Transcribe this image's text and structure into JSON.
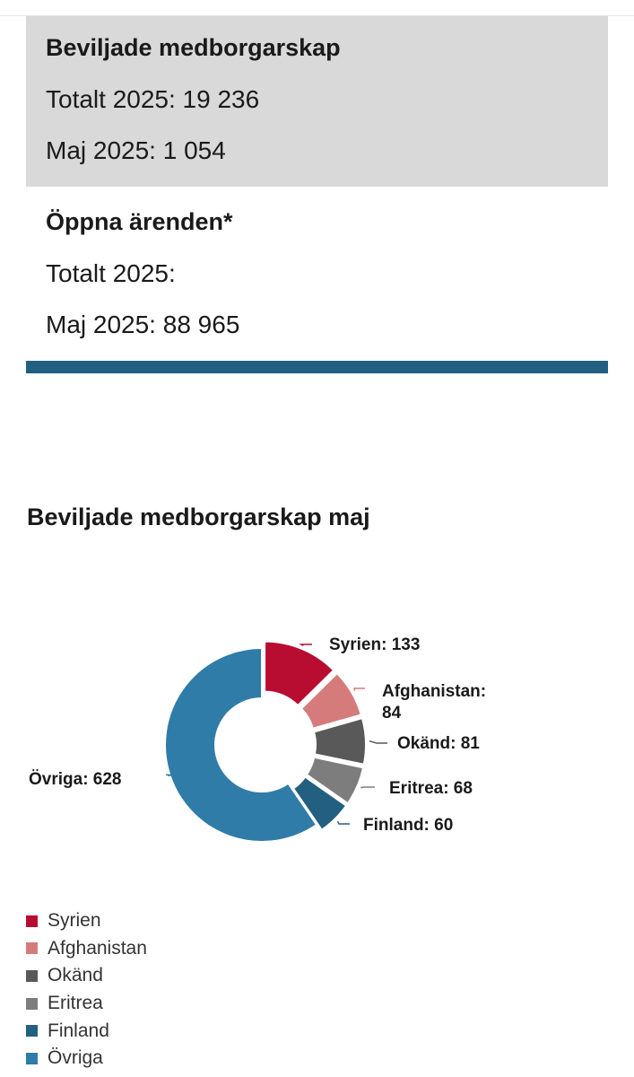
{
  "granted_box": {
    "title": "Beviljade medborgarskap",
    "total_line": "Totalt 2025: 19 236",
    "month_line": "Maj 2025: 1 054"
  },
  "open_box": {
    "title": "Öppna ärenden*",
    "total_line": "Totalt 2025:",
    "month_line": "Maj 2025: 88 965"
  },
  "colors": {
    "Syrien": "#b80c31",
    "Afghanistan": "#d67b7b",
    "Okänd": "#595959",
    "Eritrea": "#7d7d7d",
    "Finland": "#235f80",
    "Övriga": "#2f7ca8"
  },
  "chart_data": {
    "type": "pie",
    "variant": "donut",
    "title": "Beviljade medborgarskap maj",
    "categories": [
      "Syrien",
      "Afghanistan",
      "Okänd",
      "Eritrea",
      "Finland",
      "Övriga"
    ],
    "values": [
      133,
      84,
      81,
      68,
      60,
      628
    ],
    "data_labels": [
      "Syrien: 133",
      "Afghanistan: 84",
      "Okänd: 81",
      "Eritrea: 68",
      "Finland: 60",
      "Övriga: 628"
    ],
    "legend_position": "bottom-left"
  }
}
